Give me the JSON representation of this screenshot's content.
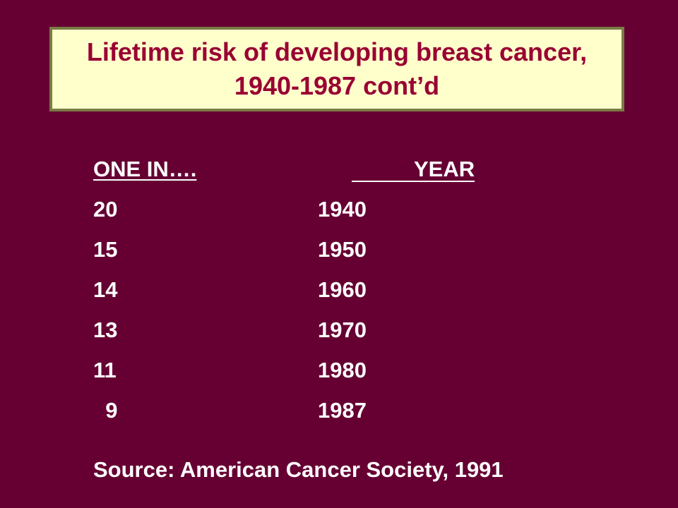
{
  "slide": {
    "title": "Lifetime risk of developing breast cancer, 1940-1987 cont’d",
    "source": "Source: American Cancer Society, 1991"
  },
  "table": {
    "headers": [
      "ONE IN….",
      "YEAR"
    ],
    "rows": [
      [
        "20",
        "1940"
      ],
      [
        "15",
        "1950"
      ],
      [
        "14",
        "1960"
      ],
      [
        "13",
        "1970"
      ],
      [
        "11",
        "1980"
      ],
      [
        "  9",
        "1987"
      ]
    ]
  },
  "colors": {
    "background": "#660033",
    "title_box": "#ffffcc",
    "title_text": "#990033",
    "title_border": "#7a7a44",
    "body_text": "#ffffff"
  }
}
